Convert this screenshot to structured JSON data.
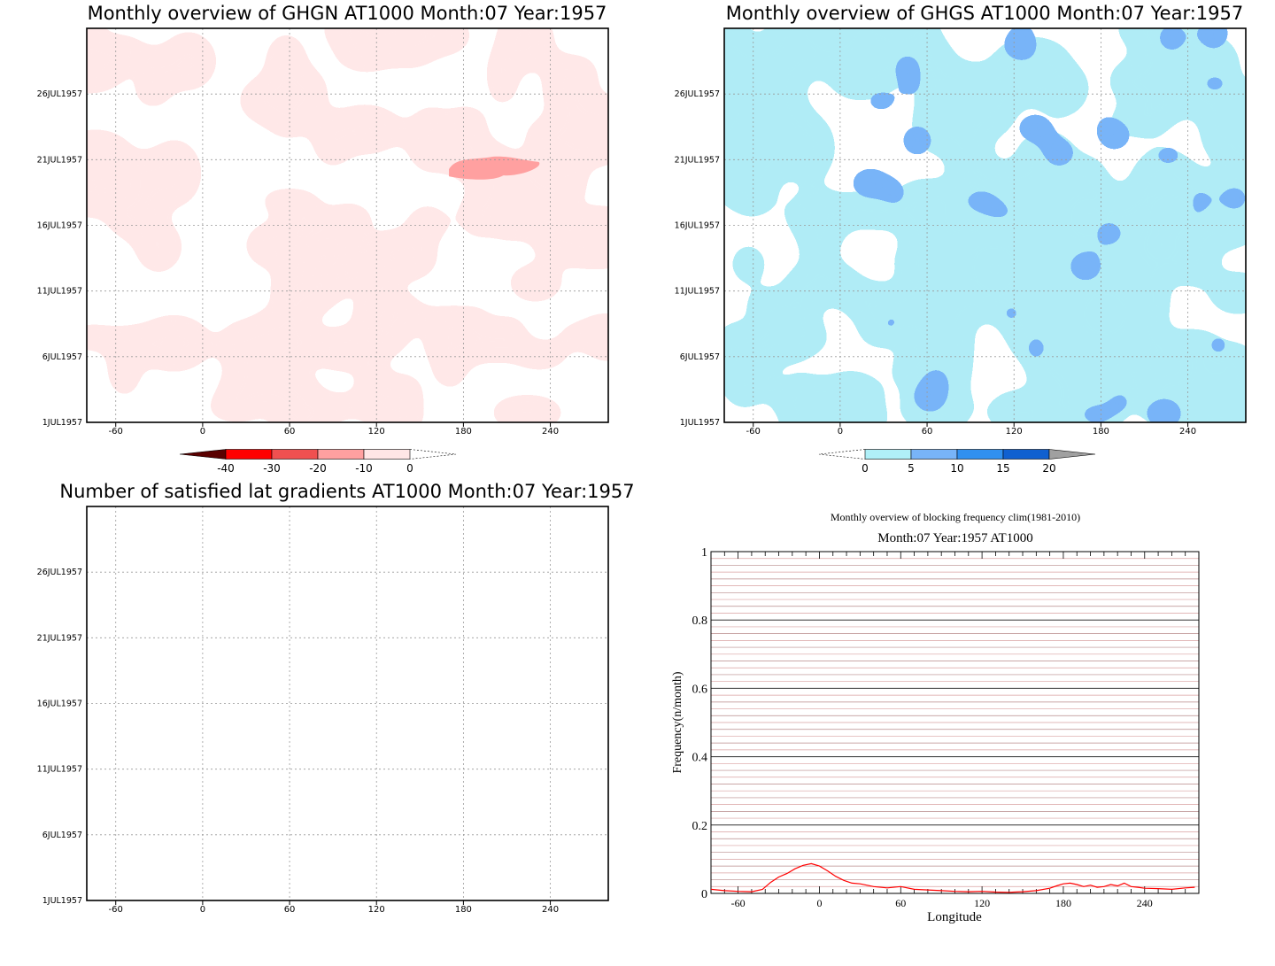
{
  "chart_data": [
    {
      "type": "heatmap",
      "id": "ghgn",
      "title": "Monthly overview of GHGN AT1000 Month:07 Year:1957",
      "xticks": [
        -60,
        0,
        60,
        120,
        180,
        240
      ],
      "xlim": [
        -80,
        280
      ],
      "yticks": [
        "1JUL1957",
        "6JUL1957",
        "11JUL1957",
        "16JUL1957",
        "21JUL1957",
        "26JUL1957"
      ],
      "ylim": [
        1,
        31
      ],
      "colorbar": {
        "labels": [
          "-40",
          "-30",
          "-20",
          "-10",
          "0"
        ],
        "colors": [
          "#5a0000",
          "#ff0000",
          "#f05050",
          "#ffa0a0",
          "#ffe6e6"
        ]
      },
      "base_color": "#ffe8e8",
      "strong_region": {
        "lon": [
          170,
          232
        ],
        "day": [
          20.0,
          21.1
        ],
        "color": "#ffa0a0"
      }
    },
    {
      "type": "heatmap",
      "id": "ghgs",
      "title": "Monthly overview of GHGS AT1000 Month:07 Year:1957",
      "xticks": [
        -60,
        0,
        60,
        120,
        180,
        240
      ],
      "xlim": [
        -80,
        280
      ],
      "yticks": [
        "1JUL1957",
        "6JUL1957",
        "11JUL1957",
        "16JUL1957",
        "21JUL1957",
        "26JUL1957"
      ],
      "ylim": [
        1,
        31
      ],
      "colorbar": {
        "labels": [
          "0",
          "5",
          "10",
          "15",
          "20"
        ],
        "colors": [
          "#b0f0f8",
          "#78b4f8",
          "#3090f0",
          "#1060d0",
          "#a0a0a0"
        ]
      },
      "base_color": "#b0ecf6",
      "strong_color": "#78b4f8"
    },
    {
      "type": "heatmap",
      "id": "nsat",
      "title": "Number of satisfied lat gradients AT1000 Month:07 Year:1957",
      "xticks": [
        -60,
        0,
        60,
        120,
        180,
        240
      ],
      "xlim": [
        -80,
        280
      ],
      "yticks": [
        "1JUL1957",
        "6JUL1957",
        "11JUL1957",
        "16JUL1957",
        "21JUL1957",
        "26JUL1957"
      ],
      "ylim": [
        1,
        31
      ]
    },
    {
      "type": "line",
      "id": "freq",
      "title": "Monthly overview of blocking frequency clim(1981-2010)",
      "subtitle": "Month:07 Year:1957  AT1000",
      "xlabel": "Longitude",
      "ylabel": "Frequency(n/month)",
      "xlim": [
        -80,
        280
      ],
      "ylim": [
        0,
        1
      ],
      "xticks": [
        -60,
        0,
        60,
        120,
        180,
        240
      ],
      "yticks": [
        0,
        0.2,
        0.4,
        0.6,
        0.8,
        1
      ],
      "ytick_labels": [
        "0",
        "0.2",
        "0.4",
        "0.6",
        "0.8",
        "1"
      ],
      "series": [
        {
          "color": "#ff0000",
          "x": [
            -80,
            -70,
            -60,
            -50,
            -42,
            -36,
            -30,
            -24,
            -18,
            -12,
            -6,
            0,
            6,
            12,
            18,
            24,
            30,
            40,
            50,
            60,
            70,
            80,
            90,
            100,
            110,
            120,
            130,
            140,
            150,
            160,
            170,
            175,
            180,
            185,
            190,
            195,
            200,
            205,
            210,
            215,
            220,
            225,
            230,
            235,
            240,
            250,
            260,
            270,
            277
          ],
          "y": [
            0.012,
            0.008,
            0.006,
            0.005,
            0.012,
            0.032,
            0.048,
            0.058,
            0.072,
            0.082,
            0.087,
            0.08,
            0.066,
            0.05,
            0.038,
            0.03,
            0.028,
            0.02,
            0.016,
            0.02,
            0.012,
            0.01,
            0.008,
            0.006,
            0.005,
            0.006,
            0.004,
            0.003,
            0.005,
            0.008,
            0.015,
            0.022,
            0.028,
            0.03,
            0.026,
            0.02,
            0.024,
            0.018,
            0.02,
            0.026,
            0.022,
            0.03,
            0.02,
            0.018,
            0.015,
            0.014,
            0.012,
            0.016,
            0.018
          ]
        }
      ]
    }
  ]
}
